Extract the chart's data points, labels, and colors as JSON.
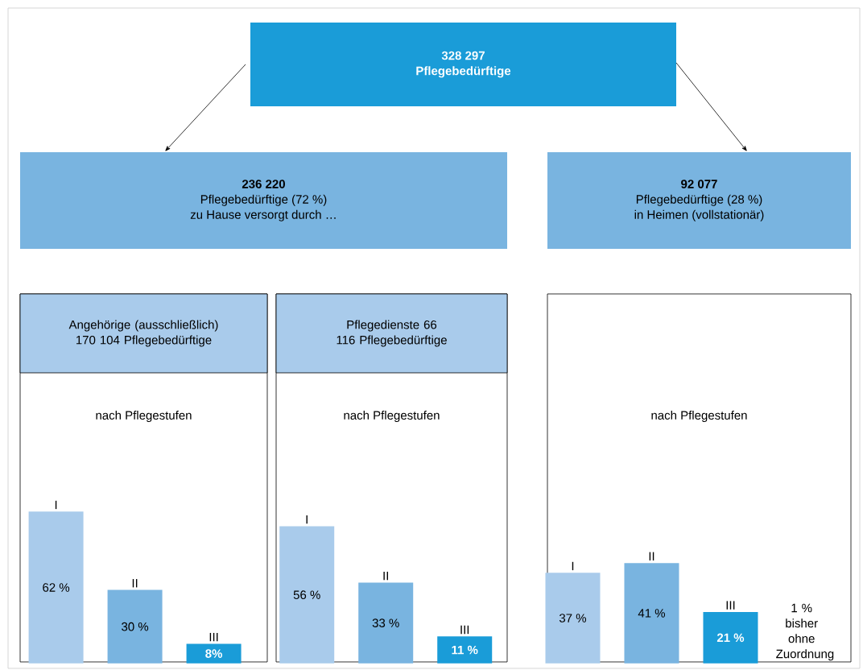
{
  "chart_data": [
    {
      "type": "other",
      "annotations": [
        "328 297",
        "Pflegebedürftige",
        "236 220",
        "Pflegebedürftige (72 %)",
        "zu Hause versorgt durch …",
        "92 077",
        "Pflegebedürftige (28 %)",
        "in Heimen (vollstationär)"
      ]
    },
    {
      "type": "bar",
      "title": "Angehörige (ausschließlich) 170 104 Pflegebedürftige",
      "subtitle": "nach Pflegestufen",
      "categories": [
        "I",
        "II",
        "III"
      ],
      "values": [
        62,
        30,
        8
      ],
      "colors": [
        "#a9cbeb",
        "#79b4e0",
        "#1a9cd8"
      ],
      "value_labels": [
        "62 %",
        "30 %",
        "8%"
      ]
    },
    {
      "type": "bar",
      "title": "Pflegedienste 66 116 Pflegebedürftige",
      "subtitle": "nach Pflegestufen",
      "categories": [
        "I",
        "II",
        "III"
      ],
      "values": [
        56,
        33,
        11
      ],
      "colors": [
        "#a9cbeb",
        "#79b4e0",
        "#1a9cd8"
      ],
      "value_labels": [
        "56 %",
        "33 %",
        "11 %"
      ]
    },
    {
      "type": "bar",
      "subtitle": "nach Pflegestufen",
      "categories": [
        "I",
        "II",
        "III"
      ],
      "values": [
        37,
        41,
        21
      ],
      "colors": [
        "#a9cbeb",
        "#79b4e0",
        "#1a9cd8"
      ],
      "value_labels": [
        "37 %",
        "41 %",
        "21 %"
      ],
      "annotations": [
        "1 % bisher ohne Zuordnung"
      ]
    }
  ]
}
